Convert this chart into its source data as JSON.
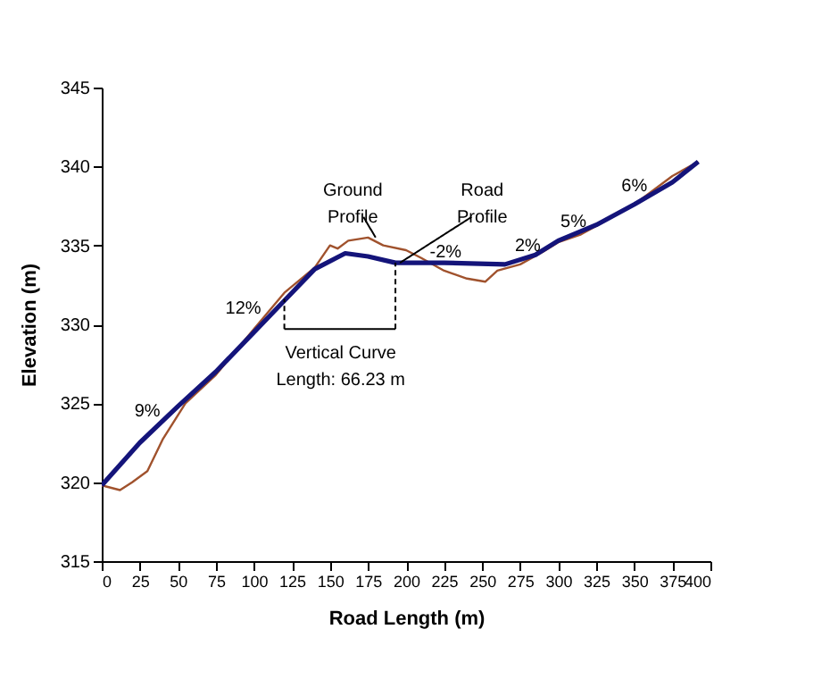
{
  "chart_data": {
    "type": "line",
    "xlabel": "Road Length (m)",
    "ylabel": "Elevation (m)",
    "xlim": [
      0,
      400
    ],
    "xticks": [
      0,
      25,
      50,
      75,
      100,
      125,
      150,
      175,
      200,
      225,
      250,
      275,
      300,
      325,
      350,
      375,
      400
    ],
    "ylim": [
      315,
      345
    ],
    "yticks": [
      315,
      320,
      325,
      330,
      335,
      340,
      345
    ],
    "grid": false,
    "series": [
      {
        "color": "#a0522d",
        "x": [
          0,
          12,
          20,
          30,
          40,
          55,
          75,
          100,
          120,
          140,
          150,
          155,
          162,
          175,
          185,
          200,
          210,
          225,
          240,
          252,
          260,
          275,
          290,
          300,
          315,
          330,
          350,
          375,
          392
        ],
        "values": [
          319.8,
          319.5,
          320,
          320.7,
          322.7,
          325,
          326.8,
          329.7,
          332,
          333.6,
          335,
          334.8,
          335.3,
          335.5,
          335,
          334.7,
          334.2,
          333.4,
          332.9,
          332.7,
          333.4,
          333.8,
          334.6,
          335.2,
          335.7,
          336.5,
          337.6,
          339.4,
          340.3
        ]
      },
      {
        "color": "#14147a",
        "x": [
          0,
          25,
          50,
          75,
          100,
          120,
          140,
          160,
          175,
          193,
          225,
          265,
          285,
          300,
          325,
          350,
          375,
          392
        ],
        "values": [
          319.8,
          322.5,
          324.8,
          327,
          329.5,
          331.5,
          333.5,
          334.5,
          334.3,
          333.9,
          333.9,
          333.8,
          334.4,
          335.3,
          336.3,
          337.6,
          339,
          340.3
        ]
      }
    ],
    "annotations": [
      "9%",
      "12%",
      "-2%",
      "2%",
      "5%",
      "6%",
      {
        "text": "Ground\nProfile",
        "x": 180,
        "y": 335.5
      },
      {
        "text": "Road\nProfile",
        "x": 196,
        "y": 333.9
      },
      {
        "text": "Vertical Curve\nLength: 66.23 m",
        "x": 193,
        "y": 333.9
      }
    ]
  }
}
